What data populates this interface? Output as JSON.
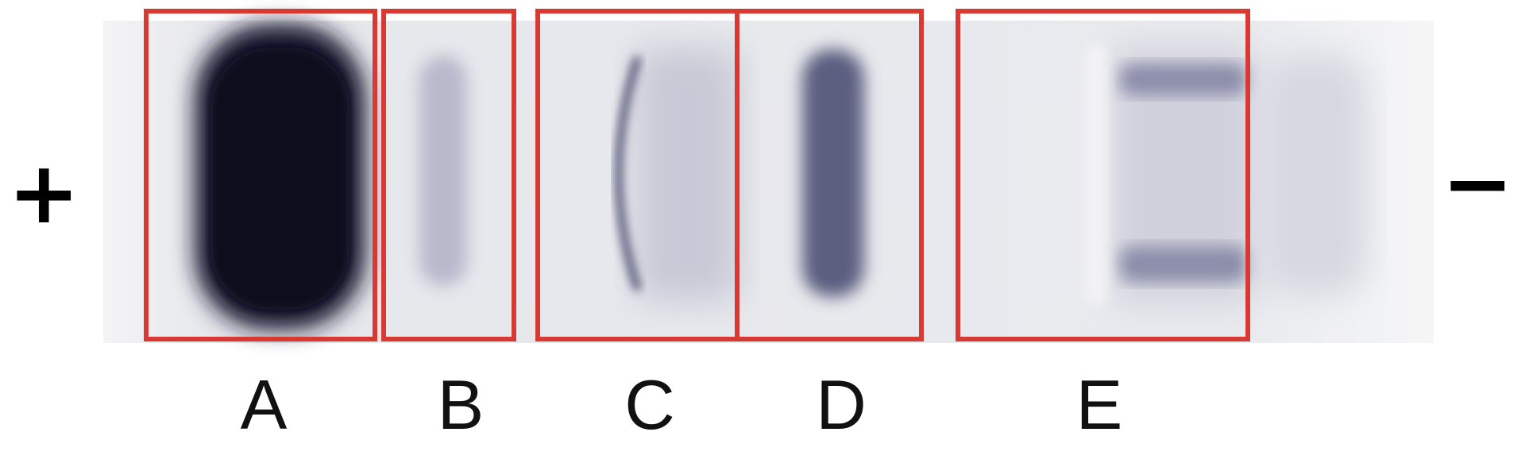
{
  "polarity": {
    "positive": "+",
    "negative": "−"
  },
  "colors": {
    "box_outline": "#d63a32",
    "band_color": "#1d2040",
    "gel_background": "#ecedf0"
  },
  "lanes": [
    {
      "label": "A"
    },
    {
      "label": "B"
    },
    {
      "label": "C"
    },
    {
      "label": "D"
    },
    {
      "label": "E"
    }
  ]
}
